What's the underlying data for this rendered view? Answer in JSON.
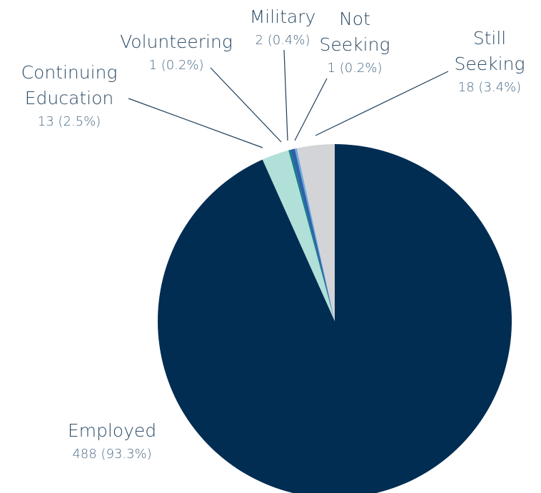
{
  "chart_data": {
    "type": "pie",
    "title": "",
    "start_angle_deg": 0,
    "direction": "clockwise",
    "slices": [
      {
        "key": "employed",
        "name_lines": [
          "Employed"
        ],
        "count": 488,
        "value_label": "488 (93.3%)",
        "percent": 93.3,
        "color": "#012d53"
      },
      {
        "key": "continuing-education",
        "name_lines": [
          "Continuing",
          "Education"
        ],
        "count": 13,
        "value_label": "13 (2.5%)",
        "percent": 2.5,
        "color": "#b1e0d9"
      },
      {
        "key": "volunteering",
        "name_lines": [
          "Volunteering"
        ],
        "count": 1,
        "value_label": "1 (0.2%)",
        "percent": 0.2,
        "color": "#0d7f86"
      },
      {
        "key": "military",
        "name_lines": [
          "Military"
        ],
        "count": 2,
        "value_label": "2 (0.4%)",
        "percent": 0.4,
        "color": "#2f5fa8"
      },
      {
        "key": "not-seeking",
        "name_lines": [
          "Not",
          "Seeking"
        ],
        "count": 1,
        "value_label": "1 (0.2%)",
        "percent": 0.2,
        "color": "#6ca9dc"
      },
      {
        "key": "still-seeking",
        "name_lines": [
          "Still",
          "Seeking"
        ],
        "count": 18,
        "value_label": "18 (3.4%)",
        "percent": 3.4,
        "color": "#d3d4d7"
      }
    ]
  }
}
